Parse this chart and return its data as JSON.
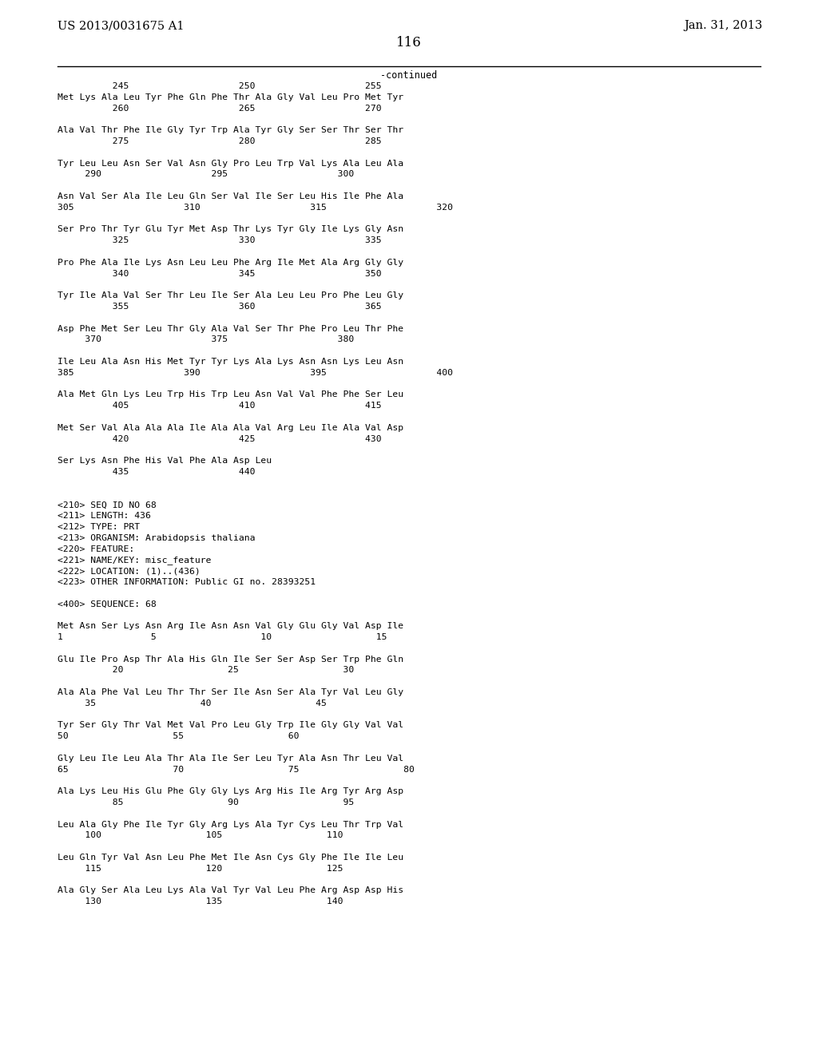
{
  "background_color": "#ffffff",
  "top_left_text": "US 2013/0031675 A1",
  "top_right_text": "Jan. 31, 2013",
  "page_number": "116",
  "continued_label": "-continued",
  "content": [
    {
      "type": "ruler",
      "text": "          245                    250                    255"
    },
    {
      "type": "seq",
      "text": "Met Lys Ala Leu Tyr Phe Gln Phe Thr Ala Gly Val Leu Pro Met Tyr"
    },
    {
      "type": "num",
      "text": "          260                    265                    270"
    },
    {
      "type": "blank"
    },
    {
      "type": "seq",
      "text": "Ala Val Thr Phe Ile Gly Tyr Trp Ala Tyr Gly Ser Ser Thr Ser Thr"
    },
    {
      "type": "num",
      "text": "          275                    280                    285"
    },
    {
      "type": "blank"
    },
    {
      "type": "seq",
      "text": "Tyr Leu Leu Asn Ser Val Asn Gly Pro Leu Trp Val Lys Ala Leu Ala"
    },
    {
      "type": "num",
      "text": "     290                    295                    300"
    },
    {
      "type": "blank"
    },
    {
      "type": "seq",
      "text": "Asn Val Ser Ala Ile Leu Gln Ser Val Ile Ser Leu His Ile Phe Ala"
    },
    {
      "type": "num",
      "text": "305                    310                    315                    320"
    },
    {
      "type": "blank"
    },
    {
      "type": "seq",
      "text": "Ser Pro Thr Tyr Glu Tyr Met Asp Thr Lys Tyr Gly Ile Lys Gly Asn"
    },
    {
      "type": "num",
      "text": "          325                    330                    335"
    },
    {
      "type": "blank"
    },
    {
      "type": "seq",
      "text": "Pro Phe Ala Ile Lys Asn Leu Leu Phe Arg Ile Met Ala Arg Gly Gly"
    },
    {
      "type": "num",
      "text": "          340                    345                    350"
    },
    {
      "type": "blank"
    },
    {
      "type": "seq",
      "text": "Tyr Ile Ala Val Ser Thr Leu Ile Ser Ala Leu Leu Pro Phe Leu Gly"
    },
    {
      "type": "num",
      "text": "          355                    360                    365"
    },
    {
      "type": "blank"
    },
    {
      "type": "seq",
      "text": "Asp Phe Met Ser Leu Thr Gly Ala Val Ser Thr Phe Pro Leu Thr Phe"
    },
    {
      "type": "num",
      "text": "     370                    375                    380"
    },
    {
      "type": "blank"
    },
    {
      "type": "seq",
      "text": "Ile Leu Ala Asn His Met Tyr Tyr Lys Ala Lys Asn Asn Lys Leu Asn"
    },
    {
      "type": "num",
      "text": "385                    390                    395                    400"
    },
    {
      "type": "blank"
    },
    {
      "type": "seq",
      "text": "Ala Met Gln Lys Leu Trp His Trp Leu Asn Val Val Phe Phe Ser Leu"
    },
    {
      "type": "num",
      "text": "          405                    410                    415"
    },
    {
      "type": "blank"
    },
    {
      "type": "seq",
      "text": "Met Ser Val Ala Ala Ala Ile Ala Ala Val Arg Leu Ile Ala Val Asp"
    },
    {
      "type": "num",
      "text": "          420                    425                    430"
    },
    {
      "type": "blank"
    },
    {
      "type": "seq",
      "text": "Ser Lys Asn Phe His Val Phe Ala Asp Leu"
    },
    {
      "type": "num",
      "text": "          435                    440"
    },
    {
      "type": "blank"
    },
    {
      "type": "blank"
    },
    {
      "type": "meta",
      "text": "<210> SEQ ID NO 68"
    },
    {
      "type": "meta",
      "text": "<211> LENGTH: 436"
    },
    {
      "type": "meta",
      "text": "<212> TYPE: PRT"
    },
    {
      "type": "meta",
      "text": "<213> ORGANISM: Arabidopsis thaliana"
    },
    {
      "type": "meta",
      "text": "<220> FEATURE:"
    },
    {
      "type": "meta",
      "text": "<221> NAME/KEY: misc_feature"
    },
    {
      "type": "meta",
      "text": "<222> LOCATION: (1)..(436)"
    },
    {
      "type": "meta",
      "text": "<223> OTHER INFORMATION: Public GI no. 28393251"
    },
    {
      "type": "blank"
    },
    {
      "type": "meta",
      "text": "<400> SEQUENCE: 68"
    },
    {
      "type": "blank"
    },
    {
      "type": "seq",
      "text": "Met Asn Ser Lys Asn Arg Ile Asn Asn Val Gly Glu Gly Val Asp Ile"
    },
    {
      "type": "num",
      "text": "1                5                   10                   15"
    },
    {
      "type": "blank"
    },
    {
      "type": "seq",
      "text": "Glu Ile Pro Asp Thr Ala His Gln Ile Ser Ser Asp Ser Trp Phe Gln"
    },
    {
      "type": "num",
      "text": "          20                   25                   30"
    },
    {
      "type": "blank"
    },
    {
      "type": "seq",
      "text": "Ala Ala Phe Val Leu Thr Thr Ser Ile Asn Ser Ala Tyr Val Leu Gly"
    },
    {
      "type": "num",
      "text": "     35                   40                   45"
    },
    {
      "type": "blank"
    },
    {
      "type": "seq",
      "text": "Tyr Ser Gly Thr Val Met Val Pro Leu Gly Trp Ile Gly Gly Val Val"
    },
    {
      "type": "num",
      "text": "50                   55                   60"
    },
    {
      "type": "blank"
    },
    {
      "type": "seq",
      "text": "Gly Leu Ile Leu Ala Thr Ala Ile Ser Leu Tyr Ala Asn Thr Leu Val"
    },
    {
      "type": "num",
      "text": "65                   70                   75                   80"
    },
    {
      "type": "blank"
    },
    {
      "type": "seq",
      "text": "Ala Lys Leu His Glu Phe Gly Gly Lys Arg His Ile Arg Tyr Arg Asp"
    },
    {
      "type": "num",
      "text": "          85                   90                   95"
    },
    {
      "type": "blank"
    },
    {
      "type": "seq",
      "text": "Leu Ala Gly Phe Ile Tyr Gly Arg Lys Ala Tyr Cys Leu Thr Trp Val"
    },
    {
      "type": "num",
      "text": "     100                   105                   110"
    },
    {
      "type": "blank"
    },
    {
      "type": "seq",
      "text": "Leu Gln Tyr Val Asn Leu Phe Met Ile Asn Cys Gly Phe Ile Ile Leu"
    },
    {
      "type": "num",
      "text": "     115                   120                   125"
    },
    {
      "type": "blank"
    },
    {
      "type": "seq",
      "text": "Ala Gly Ser Ala Leu Lys Ala Val Tyr Val Leu Phe Arg Asp Asp His"
    },
    {
      "type": "num",
      "text": "     130                   135                   140"
    }
  ]
}
